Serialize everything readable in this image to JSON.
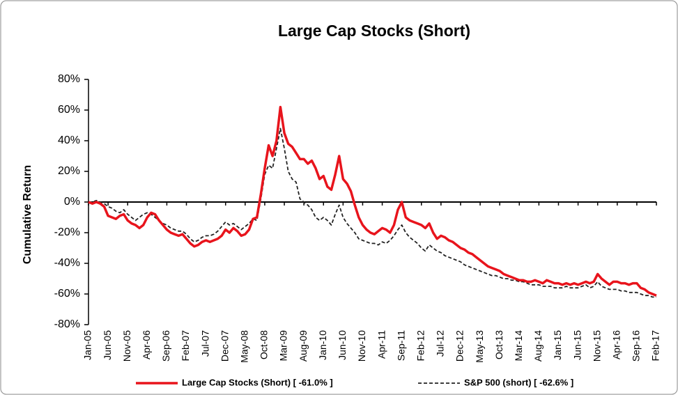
{
  "chart_data": {
    "type": "line",
    "title": "Large Cap Stocks (Short)",
    "y_label": "Cumulative Return",
    "categories": [
      "Jan-05",
      null,
      null,
      null,
      null,
      "Jun-05",
      null,
      null,
      null,
      null,
      "Nov-05",
      null,
      null,
      null,
      null,
      "Apr-06",
      null,
      null,
      null,
      null,
      "Sep-06",
      null,
      null,
      null,
      null,
      "Feb-07",
      null,
      null,
      null,
      null,
      "Jul-07",
      null,
      null,
      null,
      null,
      "Dec-07",
      null,
      null,
      null,
      null,
      "May-08",
      null,
      null,
      null,
      null,
      "Oct-08",
      null,
      null,
      null,
      null,
      "Mar-09",
      null,
      null,
      null,
      null,
      "Aug-09",
      null,
      null,
      null,
      null,
      "Jan-10",
      null,
      null,
      null,
      null,
      "Jun-10",
      null,
      null,
      null,
      null,
      "Nov-10",
      null,
      null,
      null,
      null,
      "Apr-11",
      null,
      null,
      null,
      null,
      "Sep-11",
      null,
      null,
      null,
      null,
      "Feb-12",
      null,
      null,
      null,
      null,
      "Jul-12",
      null,
      null,
      null,
      null,
      "Dec-12",
      null,
      null,
      null,
      null,
      "May-13",
      null,
      null,
      null,
      null,
      "Oct-13",
      null,
      null,
      null,
      null,
      "Mar-14",
      null,
      null,
      null,
      null,
      "Aug-14",
      null,
      null,
      null,
      null,
      "Jan-15",
      null,
      null,
      null,
      null,
      "Jun-15",
      null,
      null,
      null,
      null,
      "Nov-15",
      null,
      null,
      null,
      null,
      "Apr-16",
      null,
      null,
      null,
      null,
      "Sep-16",
      null,
      null,
      null,
      null,
      "Feb-17"
    ],
    "series": [
      {
        "name": "Large Cap Stocks (Short) [ -61.0% ]",
        "color": "#e8141c",
        "style": "solid",
        "values": [
          0,
          -1,
          0,
          -1,
          -3,
          -9,
          -10,
          -11,
          -9,
          -8,
          -12,
          -14,
          -15,
          -17,
          -15,
          -10,
          -7,
          -8,
          -12,
          -15,
          -18,
          -20,
          -21,
          -22,
          -21,
          -24,
          -27,
          -29,
          -28,
          -26,
          -25,
          -26,
          -25,
          -24,
          -22,
          -18,
          -20,
          -17,
          -19,
          -22,
          -21,
          -18,
          -11,
          -10,
          5,
          22,
          37,
          30,
          40,
          62,
          45,
          38,
          36,
          32,
          28,
          28,
          25,
          27,
          22,
          15,
          17,
          10,
          8,
          18,
          30,
          15,
          12,
          7,
          -2,
          -10,
          -15,
          -18,
          -20,
          -21,
          -19,
          -17,
          -18,
          -20,
          -15,
          -5,
          0,
          -10,
          -12,
          -13,
          -14,
          -15,
          -17,
          -14,
          -20,
          -24,
          -22,
          -23,
          -25,
          -26,
          -28,
          -30,
          -31,
          -33,
          -34,
          -36,
          -38,
          -40,
          -42,
          -43,
          -44,
          -45,
          -47,
          -48,
          -49,
          -50,
          -51,
          -51,
          -52,
          -52,
          -51,
          -52,
          -53,
          -51,
          -52,
          -53,
          -53,
          -54,
          -53,
          -54,
          -53,
          -54,
          -53,
          -52,
          -53,
          -52,
          -47,
          -50,
          -52,
          -54,
          -52,
          -52,
          -53,
          -53,
          -54,
          -53,
          -53,
          -56,
          -57,
          -59,
          -60,
          -61
        ]
      },
      {
        "name": "S&P 500 (short) [ -62.6% ]",
        "color": "#222222",
        "style": "dashed",
        "values": [
          0,
          0,
          1,
          0,
          -1,
          -3,
          -4,
          -6,
          -7,
          -5,
          -8,
          -10,
          -12,
          -10,
          -8,
          -7,
          -8,
          -10,
          -12,
          -14,
          -15,
          -17,
          -18,
          -19,
          -19,
          -21,
          -24,
          -26,
          -25,
          -23,
          -22,
          -22,
          -21,
          -19,
          -16,
          -13,
          -15,
          -14,
          -16,
          -18,
          -16,
          -14,
          -11,
          -12,
          2,
          18,
          24,
          22,
          35,
          48,
          35,
          20,
          15,
          13,
          2,
          0,
          -2,
          -5,
          -10,
          -12,
          -10,
          -12,
          -15,
          -8,
          -2,
          -10,
          -14,
          -17,
          -20,
          -24,
          -25,
          -26,
          -27,
          -27,
          -28,
          -26,
          -27,
          -25,
          -22,
          -18,
          -15,
          -20,
          -23,
          -25,
          -27,
          -30,
          -32,
          -28,
          -30,
          -32,
          -33,
          -35,
          -36,
          -37,
          -38,
          -39,
          -41,
          -42,
          -43,
          -44,
          -45,
          -46,
          -47,
          -48,
          -48,
          -49,
          -50,
          -50,
          -51,
          -51,
          -52,
          -52,
          -53,
          -54,
          -54,
          -54,
          -55,
          -55,
          -55,
          -56,
          -56,
          -56,
          -55,
          -56,
          -56,
          -56,
          -55,
          -54,
          -56,
          -55,
          -52,
          -55,
          -56,
          -57,
          -57,
          -57,
          -58,
          -58,
          -59,
          -59,
          -59,
          -60,
          -61,
          -61,
          -62,
          -62
        ]
      }
    ],
    "ylim": [
      -80,
      80
    ],
    "yticks": [
      {
        "value": -80,
        "label": "-80%"
      },
      {
        "value": -60,
        "label": "-60%"
      },
      {
        "value": -40,
        "label": "-40%"
      },
      {
        "value": -20,
        "label": "-20%"
      },
      {
        "value": 0,
        "label": "0%"
      },
      {
        "value": 20,
        "label": "20%"
      },
      {
        "value": 40,
        "label": "40%"
      },
      {
        "value": 60,
        "label": "60%"
      },
      {
        "value": 80,
        "label": "80%"
      }
    ],
    "legend": "bottom"
  }
}
